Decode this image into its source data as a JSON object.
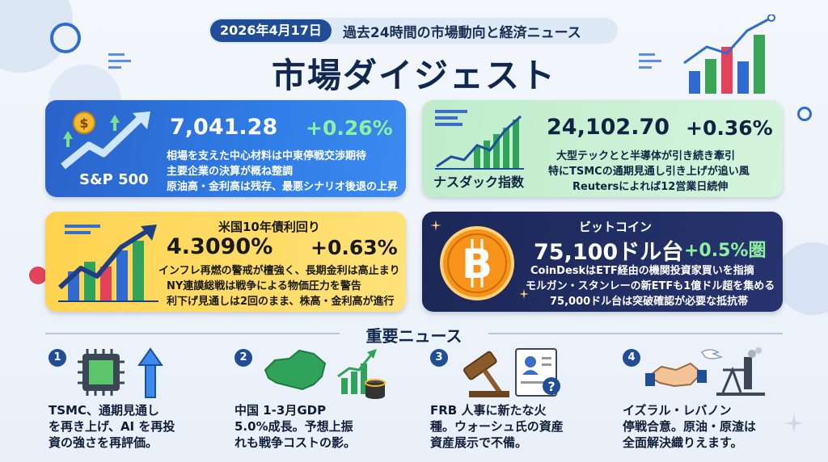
{
  "header": {
    "date": "2026年4月17日",
    "subtitle": "過去24時間の市場動向と経済ニュース",
    "title": "市場ダイジェスト"
  },
  "cards": {
    "sp500": {
      "label": "S&P 500",
      "value": "7,041.28",
      "change": "+0.26%",
      "lines": [
        "相場を支えた中心材料は中東停戦交渉期待",
        "主要企業の決算が概ね整調",
        "原油高・金利高は残存、最悪シナリオ後退の上昇"
      ]
    },
    "nasdaq": {
      "label": "ナスダック指数",
      "value": "24,102.70",
      "change": "+0.36%",
      "lines": [
        "大型テックとと半導体が引き続き牽引",
        "特にTSMCの通期見通し引き上げが追い風",
        "Reutersによれば12営業日続伸"
      ]
    },
    "bond": {
      "heading": "米国10年債利回り",
      "value": "4.3090%",
      "change": "+0.63%",
      "lines": [
        "インフレ再燃の警戒が檀強く、長期金利は高止まり",
        "NY連謨総戦は戦争による物価圧力を警告",
        "利下げ見通しは2回のまま、株高・金利高が進行"
      ]
    },
    "btc": {
      "heading": "ビットコイン",
      "value": "75,100ドル台",
      "change": "+0.5%圏",
      "lines": [
        "CoinDeskはETF経由の機関投資家買いを指摘",
        "モルガン・スタンレーの新ETFも1億ドル超を集める",
        "75,000ドル台は突破確認が必要な抵抗帯"
      ]
    }
  },
  "news_section": {
    "title": "重要ニュース",
    "items": [
      {
        "num": "1",
        "icon": "chip-up-arrow-icon",
        "text": [
          "TSMC、通期見通し",
          "を再き上げ、AI を再投",
          "資の強さを再評価。"
        ]
      },
      {
        "num": "2",
        "icon": "china-map-growth-icon",
        "text": [
          "中国 1-3月GDP",
          "5.0%成長。予想上振",
          "れも戦争コストの影。"
        ]
      },
      {
        "num": "3",
        "icon": "gavel-document-icon",
        "text": [
          "FRB 人事に新たな火",
          "種。ウォーシュ氏の資産",
          "資産展示で不備。"
        ]
      },
      {
        "num": "4",
        "icon": "handshake-dove-icon",
        "text": [
          "イズラル・レバノン",
          "停戦合意。原油・原渣は",
          "全面解決織りえます。"
        ]
      }
    ]
  },
  "colors": {
    "navy": "#1f4d96",
    "sp_card": "#2f7de6",
    "nasdaq_card": "#c9f0d3",
    "bond_card": "#ffd94f",
    "btc_card": "#1f2b60",
    "positive_green": "#2ea84a",
    "bitcoin_orange": "#f7931a"
  }
}
